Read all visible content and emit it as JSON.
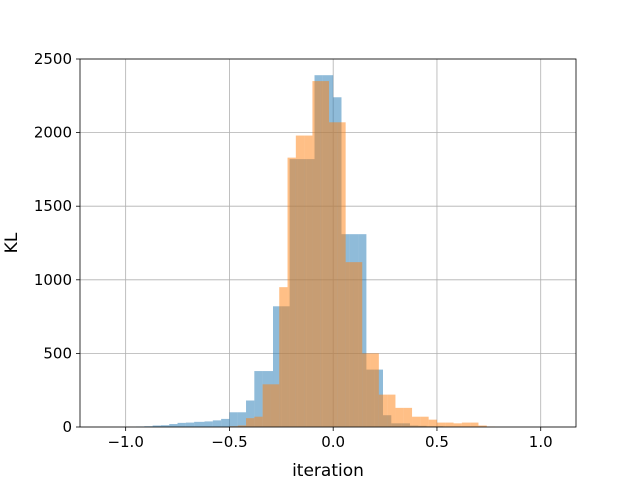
{
  "chart_data": {
    "type": "bar",
    "title": "",
    "xlabel": "iteration",
    "ylabel": "KL",
    "xlim": [
      -1.22,
      1.17
    ],
    "ylim": [
      0,
      2500
    ],
    "xticks": [
      -1.0,
      -0.5,
      0.0,
      0.5,
      1.0
    ],
    "xtick_labels": [
      "−1.0",
      "−0.5",
      "0.0",
      "0.5",
      "1.0"
    ],
    "yticks": [
      0,
      500,
      1000,
      1500,
      2000,
      2500
    ],
    "ytick_labels": [
      "0",
      "500",
      "1000",
      "1500",
      "2000",
      "2500"
    ],
    "grid": true,
    "legend": "none",
    "series": [
      {
        "color": "#1f77b4",
        "opacity": 0.5,
        "bins": [
          {
            "x0": -0.95,
            "x1": -0.91,
            "y": 3
          },
          {
            "x0": -0.91,
            "x1": -0.87,
            "y": 5
          },
          {
            "x0": -0.87,
            "x1": -0.83,
            "y": 10
          },
          {
            "x0": -0.83,
            "x1": -0.79,
            "y": 12
          },
          {
            "x0": -0.79,
            "x1": -0.75,
            "y": 20
          },
          {
            "x0": -0.75,
            "x1": -0.71,
            "y": 28
          },
          {
            "x0": -0.71,
            "x1": -0.67,
            "y": 30
          },
          {
            "x0": -0.67,
            "x1": -0.62,
            "y": 35
          },
          {
            "x0": -0.62,
            "x1": -0.58,
            "y": 38
          },
          {
            "x0": -0.58,
            "x1": -0.54,
            "y": 45
          },
          {
            "x0": -0.54,
            "x1": -0.5,
            "y": 55
          },
          {
            "x0": -0.5,
            "x1": -0.46,
            "y": 100
          },
          {
            "x0": -0.46,
            "x1": -0.42,
            "y": 100
          },
          {
            "x0": -0.42,
            "x1": -0.38,
            "y": 180
          },
          {
            "x0": -0.38,
            "x1": -0.34,
            "y": 380
          },
          {
            "x0": -0.34,
            "x1": -0.29,
            "y": 380
          },
          {
            "x0": -0.29,
            "x1": -0.25,
            "y": 820
          },
          {
            "x0": -0.25,
            "x1": -0.21,
            "y": 820
          },
          {
            "x0": -0.21,
            "x1": -0.17,
            "y": 1820
          },
          {
            "x0": -0.17,
            "x1": -0.13,
            "y": 1820
          },
          {
            "x0": -0.13,
            "x1": -0.09,
            "y": 1820
          },
          {
            "x0": -0.09,
            "x1": -0.05,
            "y": 2390
          },
          {
            "x0": -0.05,
            "x1": 0.0,
            "y": 2390
          },
          {
            "x0": 0.0,
            "x1": 0.04,
            "y": 2240
          },
          {
            "x0": 0.04,
            "x1": 0.08,
            "y": 1310
          },
          {
            "x0": 0.08,
            "x1": 0.12,
            "y": 1310
          },
          {
            "x0": 0.12,
            "x1": 0.16,
            "y": 1310
          },
          {
            "x0": 0.16,
            "x1": 0.2,
            "y": 390
          },
          {
            "x0": 0.2,
            "x1": 0.24,
            "y": 390
          },
          {
            "x0": 0.24,
            "x1": 0.28,
            "y": 80
          },
          {
            "x0": 0.28,
            "x1": 0.33,
            "y": 25
          },
          {
            "x0": 0.33,
            "x1": 0.37,
            "y": 25
          },
          {
            "x0": 0.37,
            "x1": 0.41,
            "y": 10
          },
          {
            "x0": 0.41,
            "x1": 0.45,
            "y": 8
          },
          {
            "x0": 0.45,
            "x1": 0.49,
            "y": 5
          },
          {
            "x0": 0.49,
            "x1": 0.53,
            "y": 5
          },
          {
            "x0": 0.53,
            "x1": 0.58,
            "y": 3
          },
          {
            "x0": 0.58,
            "x1": 0.62,
            "y": 3
          },
          {
            "x0": 0.62,
            "x1": 0.66,
            "y": 2
          }
        ]
      },
      {
        "color": "#ff7f0e",
        "opacity": 0.5,
        "bins": [
          {
            "x0": -0.5,
            "x1": -0.46,
            "y": 5
          },
          {
            "x0": -0.46,
            "x1": -0.42,
            "y": 10
          },
          {
            "x0": -0.42,
            "x1": -0.38,
            "y": 60
          },
          {
            "x0": -0.38,
            "x1": -0.34,
            "y": 70
          },
          {
            "x0": -0.34,
            "x1": -0.3,
            "y": 290
          },
          {
            "x0": -0.3,
            "x1": -0.26,
            "y": 290
          },
          {
            "x0": -0.26,
            "x1": -0.22,
            "y": 950
          },
          {
            "x0": -0.22,
            "x1": -0.18,
            "y": 1830
          },
          {
            "x0": -0.18,
            "x1": -0.14,
            "y": 1980
          },
          {
            "x0": -0.14,
            "x1": -0.1,
            "y": 1980
          },
          {
            "x0": -0.1,
            "x1": -0.06,
            "y": 2350
          },
          {
            "x0": -0.06,
            "x1": -0.02,
            "y": 2350
          },
          {
            "x0": -0.02,
            "x1": 0.02,
            "y": 2070
          },
          {
            "x0": 0.02,
            "x1": 0.06,
            "y": 2070
          },
          {
            "x0": 0.06,
            "x1": 0.1,
            "y": 1120
          },
          {
            "x0": 0.1,
            "x1": 0.14,
            "y": 1120
          },
          {
            "x0": 0.14,
            "x1": 0.18,
            "y": 500
          },
          {
            "x0": 0.18,
            "x1": 0.22,
            "y": 500
          },
          {
            "x0": 0.22,
            "x1": 0.26,
            "y": 220
          },
          {
            "x0": 0.26,
            "x1": 0.3,
            "y": 220
          },
          {
            "x0": 0.3,
            "x1": 0.34,
            "y": 130
          },
          {
            "x0": 0.34,
            "x1": 0.38,
            "y": 130
          },
          {
            "x0": 0.38,
            "x1": 0.42,
            "y": 70
          },
          {
            "x0": 0.42,
            "x1": 0.46,
            "y": 70
          },
          {
            "x0": 0.46,
            "x1": 0.5,
            "y": 50
          },
          {
            "x0": 0.5,
            "x1": 0.54,
            "y": 30
          },
          {
            "x0": 0.54,
            "x1": 0.58,
            "y": 30
          },
          {
            "x0": 0.58,
            "x1": 0.62,
            "y": 25
          },
          {
            "x0": 0.62,
            "x1": 0.66,
            "y": 30
          },
          {
            "x0": 0.66,
            "x1": 0.7,
            "y": 30
          },
          {
            "x0": 0.7,
            "x1": 0.74,
            "y": 10
          },
          {
            "x0": 0.74,
            "x1": 0.78,
            "y": 3
          }
        ]
      }
    ]
  }
}
